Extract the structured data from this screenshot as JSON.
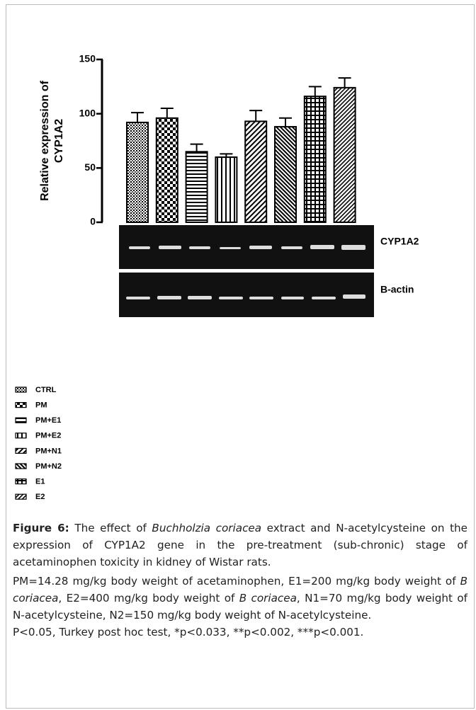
{
  "chart_data": {
    "type": "bar",
    "ylabel": [
      "Relative expression of",
      "CYP1A2"
    ],
    "categories": [
      "CTRL",
      "PM",
      "PM+E1",
      "PM+E2",
      "PM+N1",
      "PM+N2",
      "E1",
      "E2"
    ],
    "values": [
      92,
      96,
      65,
      60,
      93,
      88,
      116,
      124
    ],
    "errors": [
      9,
      9,
      7,
      3,
      10,
      8,
      9,
      9
    ],
    "color": "#000000",
    "ylim": [
      0,
      150
    ],
    "yticks": [
      0,
      50,
      100,
      150
    ],
    "grid": false,
    "gel_labels": [
      "CYP1A2",
      "B-actin"
    ]
  },
  "caption": {
    "label": "Figure 6:",
    "text": [
      " The effect of ",
      "Buchholzia coriacea",
      " extract and N-acetylcysteine on the expression of CYP1A2 gene in the pre-treatment (sub-chronic) stage of acetaminophen toxicity in kidney of Wistar rats."
    ],
    "notes": [
      "PM=14.28 mg/kg body weight of acetaminophen, E1=200 mg/kg body weight of ",
      "B coriacea",
      ", E2=400 mg/kg body weight of ",
      "B coriacea",
      ", N1=70 mg/kg body weight of N-acetylcysteine, N2=150 mg/kg body weight of N-acetylcysteine."
    ],
    "stats": "P<0.05, Turkey post hoc test, *p<0.033, **p<0.002, ***p<0.001."
  }
}
